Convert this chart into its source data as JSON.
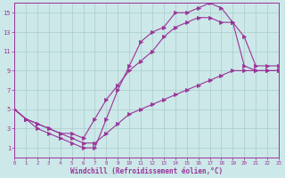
{
  "xlabel": "Windchill (Refroidissement éolien,°C)",
  "xlim": [
    0,
    23
  ],
  "ylim": [
    0,
    16
  ],
  "xticks": [
    0,
    1,
    2,
    3,
    4,
    5,
    6,
    7,
    8,
    9,
    10,
    11,
    12,
    13,
    14,
    15,
    16,
    17,
    18,
    19,
    20,
    21,
    22,
    23
  ],
  "yticks": [
    1,
    3,
    5,
    7,
    9,
    11,
    13,
    15
  ],
  "line_color": "#993399",
  "bg_color": "#cce8e8",
  "grid_color": "#aacccc",
  "line1_x": [
    0,
    1,
    2,
    3,
    4,
    5,
    6,
    7,
    8,
    9,
    10,
    11,
    12,
    13,
    14,
    15,
    16,
    17,
    18,
    19,
    20,
    21,
    22,
    23
  ],
  "line1_y": [
    5,
    4,
    3,
    2.5,
    2,
    1.5,
    1,
    1,
    4,
    7,
    9.5,
    12,
    13,
    13.5,
    15,
    15,
    15.5,
    16,
    15.5,
    14,
    12.5,
    9.5,
    9.5,
    9.5
  ],
  "line2_x": [
    0,
    1,
    2,
    3,
    4,
    5,
    6,
    7,
    8,
    9,
    10,
    11,
    12,
    13,
    14,
    15,
    16,
    17,
    18,
    19,
    20,
    21,
    22,
    23
  ],
  "line2_y": [
    5,
    4,
    3.5,
    3,
    2.5,
    2.5,
    2,
    4,
    6,
    7.5,
    9,
    10,
    11,
    12.5,
    13.5,
    14,
    14.5,
    14.5,
    14,
    14,
    9.5,
    9,
    9,
    9
  ],
  "line3_x": [
    0,
    1,
    2,
    3,
    4,
    5,
    6,
    7,
    8,
    9,
    10,
    11,
    12,
    13,
    14,
    15,
    16,
    17,
    18,
    19,
    20,
    21,
    22,
    23
  ],
  "line3_y": [
    5,
    4,
    3.5,
    3,
    2.5,
    2,
    1.5,
    1.5,
    2.5,
    3.5,
    4.5,
    5,
    5.5,
    6,
    6.5,
    7,
    7.5,
    8,
    8.5,
    9,
    9,
    9,
    9,
    9
  ]
}
